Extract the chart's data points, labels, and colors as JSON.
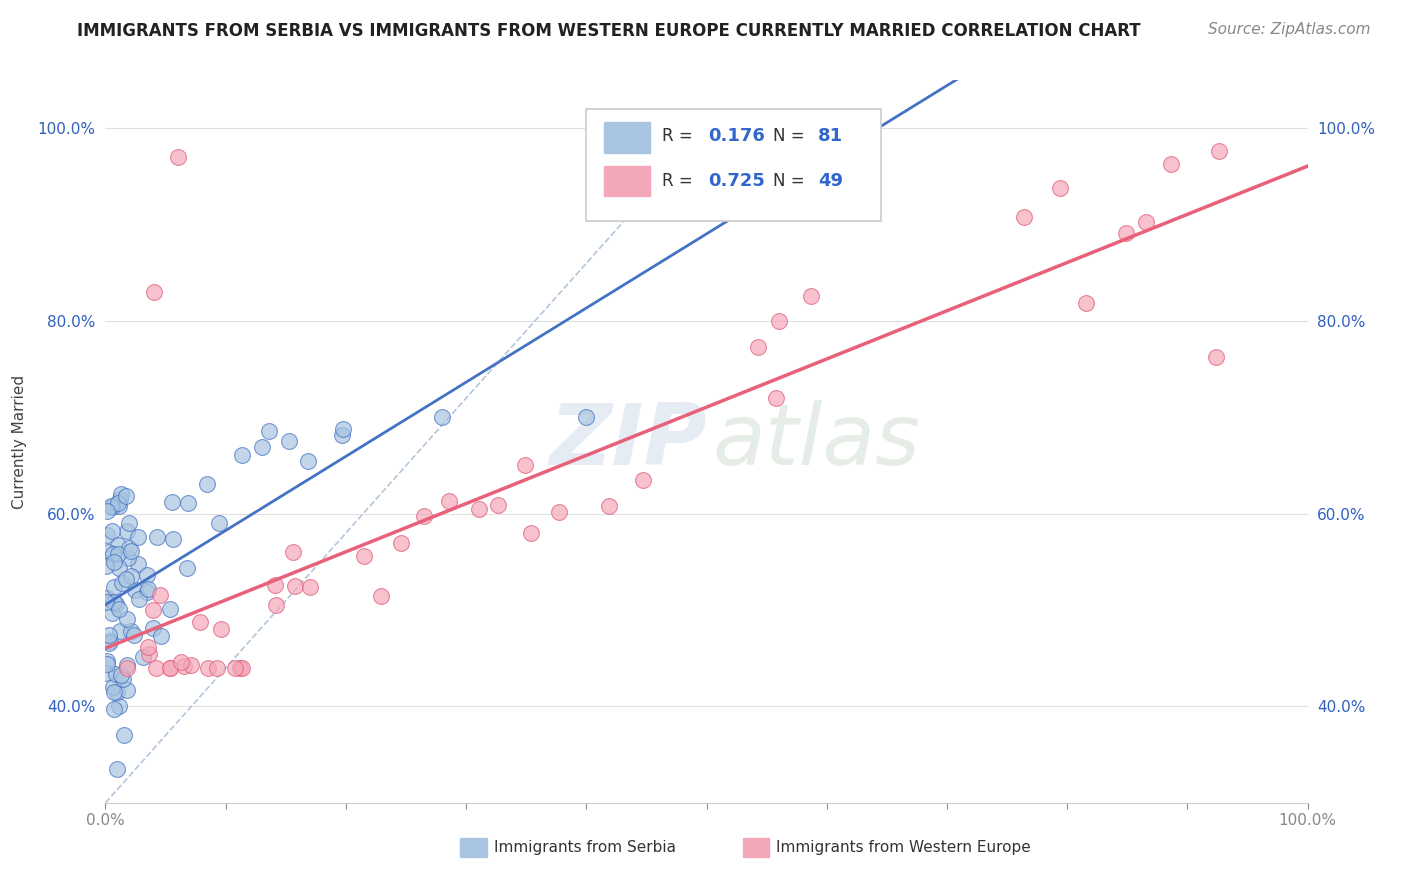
{
  "title": "IMMIGRANTS FROM SERBIA VS IMMIGRANTS FROM WESTERN EUROPE CURRENTLY MARRIED CORRELATION CHART",
  "source": "Source: ZipAtlas.com",
  "ylabel": "Currently Married",
  "serbia_R": 0.176,
  "serbia_N": 81,
  "western_R": 0.725,
  "western_N": 49,
  "serbia_color": "#a8c4e0",
  "serbia_edge_color": "#4472c4",
  "western_color": "#f4a7b9",
  "western_edge_color": "#e05c7a",
  "serbia_line_color": "#4472c4",
  "western_line_color": "#e8607a",
  "diag_line_color": "#a0b8d0",
  "grid_color": "#e0e0e0",
  "background_color": "#ffffff",
  "title_fontsize": 12,
  "axis_label_fontsize": 11,
  "tick_fontsize": 11,
  "source_fontsize": 11,
  "xlim": [
    0.0,
    1.0
  ],
  "ylim": [
    0.3,
    1.05
  ],
  "x_ticks": [
    0.0,
    0.1,
    0.2,
    0.3,
    0.4,
    0.5,
    0.6,
    0.7,
    0.8,
    0.9,
    1.0
  ],
  "x_tick_labels": [
    "0.0%",
    "",
    "",
    "",
    "",
    "",
    "",
    "",
    "",
    "",
    "100.0%"
  ],
  "y_ticks": [
    0.4,
    0.6,
    0.8,
    1.0
  ],
  "y_tick_labels": [
    "40.0%",
    "60.0%",
    "80.0%",
    "100.0%"
  ]
}
